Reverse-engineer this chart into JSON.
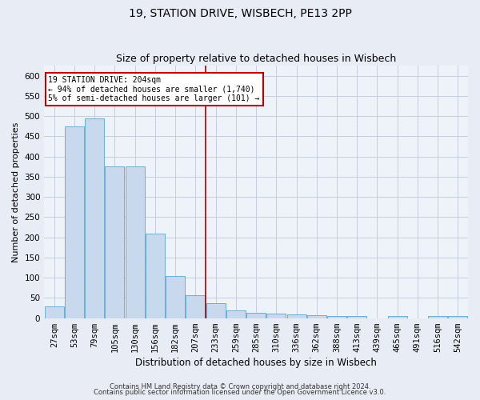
{
  "title1": "19, STATION DRIVE, WISBECH, PE13 2PP",
  "title2": "Size of property relative to detached houses in Wisbech",
  "xlabel": "Distribution of detached houses by size in Wisbech",
  "ylabel": "Number of detached properties",
  "categories": [
    "27sqm",
    "53sqm",
    "79sqm",
    "105sqm",
    "130sqm",
    "156sqm",
    "182sqm",
    "207sqm",
    "233sqm",
    "259sqm",
    "285sqm",
    "310sqm",
    "336sqm",
    "362sqm",
    "388sqm",
    "413sqm",
    "439sqm",
    "465sqm",
    "491sqm",
    "516sqm",
    "542sqm"
  ],
  "values": [
    30,
    475,
    495,
    375,
    375,
    210,
    105,
    57,
    38,
    20,
    13,
    12,
    10,
    8,
    5,
    5,
    0,
    5,
    0,
    5,
    5
  ],
  "bar_color": "#c8d9ee",
  "bar_edge_color": "#6baed6",
  "vline_color": "#aa0000",
  "annotation_text": "19 STATION DRIVE: 204sqm\n← 94% of detached houses are smaller (1,740)\n5% of semi-detached houses are larger (101) →",
  "annotation_box_color": "#ffffff",
  "annotation_box_edge_color": "#bb0000",
  "ylim": [
    0,
    625
  ],
  "yticks": [
    0,
    50,
    100,
    150,
    200,
    250,
    300,
    350,
    400,
    450,
    500,
    550,
    600
  ],
  "footer1": "Contains HM Land Registry data © Crown copyright and database right 2024.",
  "footer2": "Contains public sector information licensed under the Open Government Licence v3.0.",
  "bg_color": "#e8edf5",
  "plot_bg_color": "#eef3fa",
  "title1_fontsize": 10,
  "title2_fontsize": 9,
  "xlabel_fontsize": 8.5,
  "ylabel_fontsize": 8,
  "tick_fontsize": 7.5,
  "footer_fontsize": 6,
  "vline_x_index": 7
}
